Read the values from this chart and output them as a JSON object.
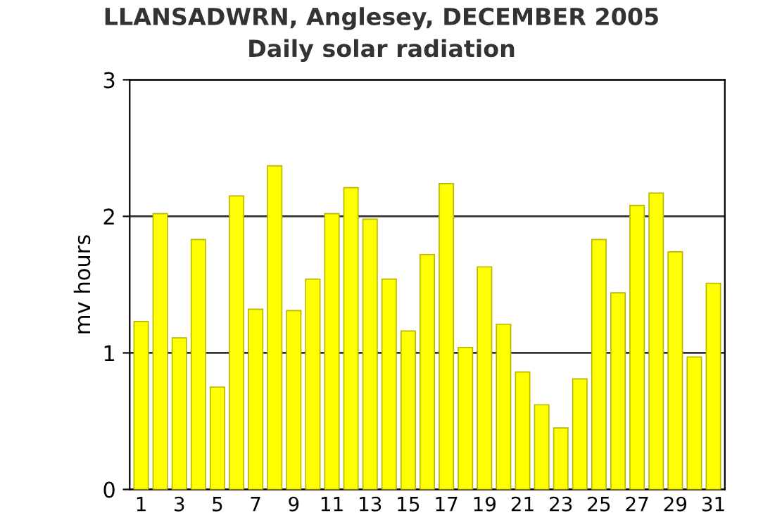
{
  "chart_data": {
    "type": "bar",
    "title": "LLANSADWRN, Anglesey, DECEMBER 2005",
    "subtitle": "Daily solar radiation",
    "ylabel": "mv hours",
    "categories": [
      "1",
      null,
      "3",
      null,
      "5",
      null,
      "7",
      null,
      "9",
      null,
      "11",
      null,
      "13",
      null,
      "15",
      null,
      "17",
      null,
      "19",
      null,
      "21",
      null,
      "23",
      null,
      "25",
      null,
      "27",
      null,
      "29",
      null,
      "31"
    ],
    "values": [
      1.23,
      2.02,
      1.11,
      1.83,
      0.75,
      2.15,
      1.32,
      2.37,
      1.31,
      1.54,
      2.02,
      2.21,
      1.98,
      1.54,
      1.16,
      1.72,
      2.24,
      1.04,
      1.63,
      1.21,
      0.86,
      0.62,
      0.45,
      0.81,
      1.83,
      1.44,
      2.08,
      2.17,
      1.74,
      0.97,
      1.51
    ],
    "color": "#ffff00",
    "ylim": [
      0,
      3
    ],
    "yticks": [
      0,
      1,
      2,
      3
    ],
    "grid": "y"
  }
}
